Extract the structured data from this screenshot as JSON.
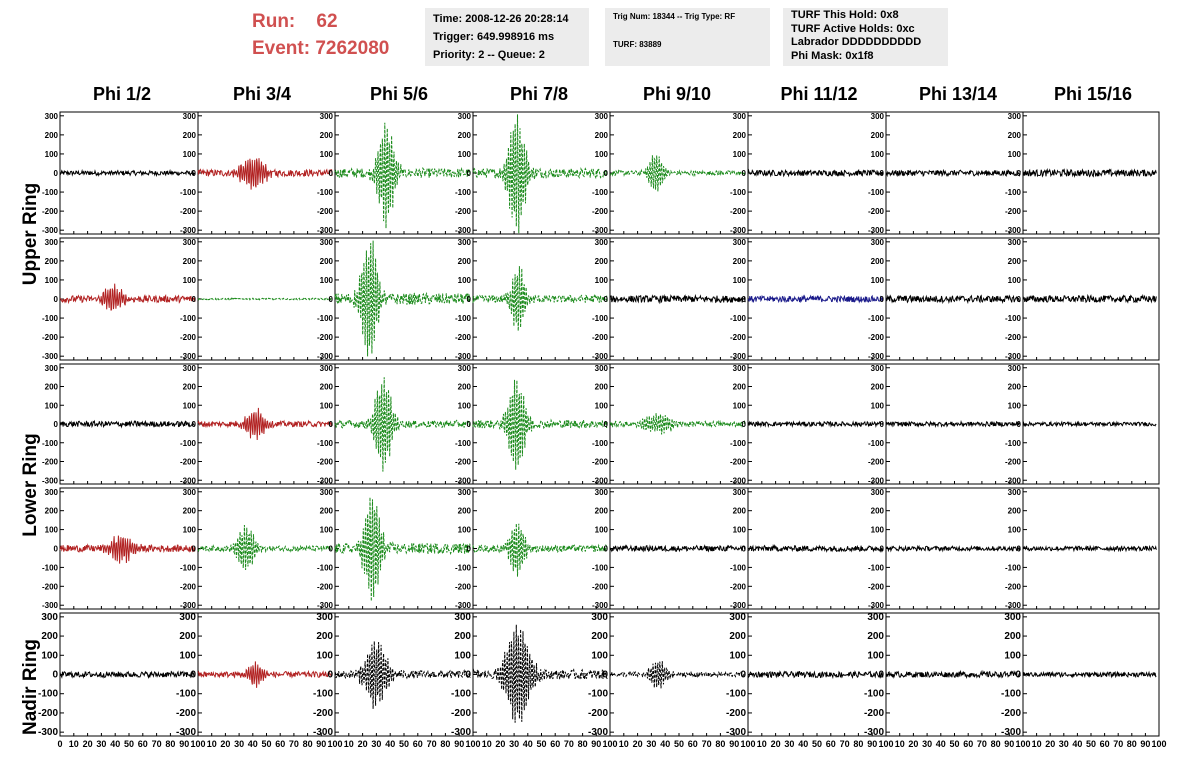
{
  "header": {
    "run_label": "Run:",
    "run_value": "62",
    "event_label": "Event:",
    "event_value": "7262080",
    "box1": [
      "Time: 2008-12-26 20:28:14",
      "Trigger: 649.998916 ms",
      "Priority: 2 -- Queue: 2"
    ],
    "box2": [
      "Trig Num: 18344 -- Trig Type: RF",
      "TURF: 83889"
    ],
    "box3": [
      "TURF This Hold: 0x8",
      "TURF Active Holds: 0xc",
      "Labrador DDDDDDDDDD",
      "Phi Mask: 0x1f8"
    ]
  },
  "columns": [
    "Phi 1/2",
    "Phi 3/4",
    "Phi 5/6",
    "Phi 7/8",
    "Phi 9/10",
    "Phi 11/12",
    "Phi 13/14",
    "Phi 15/16"
  ],
  "ring_labels": [
    "Upper Ring",
    "Lower Ring",
    "Nadir Ring"
  ],
  "chart_data": {
    "type": "line",
    "description_of_grid": "5 rows x 8 columns of waveform panels",
    "xlim": [
      0,
      100
    ],
    "ylim": [
      -320,
      320
    ],
    "y_ticks": [
      -300,
      -200,
      -100,
      0,
      100,
      200,
      300
    ],
    "x_ticks": [
      0,
      10,
      20,
      30,
      40,
      50,
      60,
      70,
      80,
      90,
      100
    ],
    "colors": {
      "black": "#000000",
      "red": "#b22222",
      "green": "#1a8a1a",
      "blue": "#1a1a8a"
    },
    "panels": [
      [
        {
          "color": "black",
          "amp": 12,
          "center": 45,
          "width": 60,
          "peak": 0,
          "dashed": false
        },
        {
          "color": "red",
          "amp": 18,
          "center": 40,
          "width": 10,
          "peak": 85,
          "dashed": false
        },
        {
          "color": "green",
          "amp": 25,
          "center": 37,
          "width": 7,
          "peak": 270,
          "dashed": true
        },
        {
          "color": "green",
          "amp": 25,
          "center": 32,
          "width": 7,
          "peak": 310,
          "dashed": true
        },
        {
          "color": "green",
          "amp": 12,
          "center": 33,
          "width": 6,
          "peak": 110,
          "dashed": true
        },
        {
          "color": "black",
          "amp": 15,
          "center": 50,
          "width": 60,
          "peak": 0,
          "dashed": false
        },
        {
          "color": "black",
          "amp": 15,
          "center": 50,
          "width": 60,
          "peak": 0,
          "dashed": false
        },
        {
          "color": "black",
          "amp": 18,
          "center": 50,
          "width": 60,
          "peak": 0,
          "dashed": false
        }
      ],
      [
        {
          "color": "red",
          "amp": 18,
          "center": 38,
          "width": 8,
          "peak": 70,
          "dashed": false
        },
        {
          "color": "green",
          "amp": 4,
          "center": 50,
          "width": 60,
          "peak": 0,
          "dashed": true
        },
        {
          "color": "green",
          "amp": 30,
          "center": 25,
          "width": 7,
          "peak": 320,
          "dashed": true
        },
        {
          "color": "green",
          "amp": 20,
          "center": 33,
          "width": 6,
          "peak": 180,
          "dashed": true
        },
        {
          "color": "black",
          "amp": 18,
          "center": 50,
          "width": 60,
          "peak": 0,
          "dashed": false
        },
        {
          "color": "blue",
          "amp": 16,
          "center": 40,
          "width": 60,
          "peak": 0,
          "dashed": false
        },
        {
          "color": "black",
          "amp": 18,
          "center": 50,
          "width": 60,
          "peak": 0,
          "dashed": false
        },
        {
          "color": "black",
          "amp": 18,
          "center": 50,
          "width": 60,
          "peak": 0,
          "dashed": false
        }
      ],
      [
        {
          "color": "black",
          "amp": 15,
          "center": 50,
          "width": 60,
          "peak": 0,
          "dashed": false
        },
        {
          "color": "red",
          "amp": 15,
          "center": 42,
          "width": 8,
          "peak": 80,
          "dashed": false
        },
        {
          "color": "green",
          "amp": 20,
          "center": 35,
          "width": 7,
          "peak": 250,
          "dashed": true
        },
        {
          "color": "green",
          "amp": 22,
          "center": 32,
          "width": 7,
          "peak": 250,
          "dashed": true
        },
        {
          "color": "green",
          "amp": 14,
          "center": 35,
          "width": 12,
          "peak": 50,
          "dashed": true
        },
        {
          "color": "black",
          "amp": 12,
          "center": 50,
          "width": 60,
          "peak": 0,
          "dashed": false
        },
        {
          "color": "black",
          "amp": 12,
          "center": 50,
          "width": 60,
          "peak": 0,
          "dashed": false
        },
        {
          "color": "black",
          "amp": 10,
          "center": 50,
          "width": 60,
          "peak": 0,
          "dashed": false
        }
      ],
      [
        {
          "color": "red",
          "amp": 18,
          "center": 45,
          "width": 9,
          "peak": 75,
          "dashed": false
        },
        {
          "color": "green",
          "amp": 14,
          "center": 35,
          "width": 7,
          "peak": 120,
          "dashed": true
        },
        {
          "color": "green",
          "amp": 28,
          "center": 27,
          "width": 7,
          "peak": 290,
          "dashed": true
        },
        {
          "color": "green",
          "amp": 18,
          "center": 32,
          "width": 6,
          "peak": 150,
          "dashed": true
        },
        {
          "color": "black",
          "amp": 15,
          "center": 50,
          "width": 60,
          "peak": 0,
          "dashed": false
        },
        {
          "color": "black",
          "amp": 15,
          "center": 50,
          "width": 60,
          "peak": 0,
          "dashed": false
        },
        {
          "color": "black",
          "amp": 12,
          "center": 50,
          "width": 60,
          "peak": 0,
          "dashed": false
        },
        {
          "color": "black",
          "amp": 12,
          "center": 50,
          "width": 60,
          "peak": 0,
          "dashed": false
        }
      ],
      [
        {
          "color": "black",
          "amp": 15,
          "center": 50,
          "width": 60,
          "peak": 0,
          "dashed": false
        },
        {
          "color": "red",
          "amp": 15,
          "center": 42,
          "width": 7,
          "peak": 60,
          "dashed": false
        },
        {
          "color": "black",
          "amp": 20,
          "center": 30,
          "width": 9,
          "peak": 180,
          "dashed": true
        },
        {
          "color": "black",
          "amp": 25,
          "center": 33,
          "width": 10,
          "peak": 270,
          "dashed": true
        },
        {
          "color": "black",
          "amp": 12,
          "center": 35,
          "width": 7,
          "peak": 70,
          "dashed": true
        },
        {
          "color": "black",
          "amp": 15,
          "center": 50,
          "width": 60,
          "peak": 0,
          "dashed": false
        },
        {
          "color": "black",
          "amp": 15,
          "center": 50,
          "width": 60,
          "peak": 0,
          "dashed": false
        },
        {
          "color": "black",
          "amp": 12,
          "center": 50,
          "width": 60,
          "peak": 0,
          "dashed": false
        }
      ]
    ]
  }
}
